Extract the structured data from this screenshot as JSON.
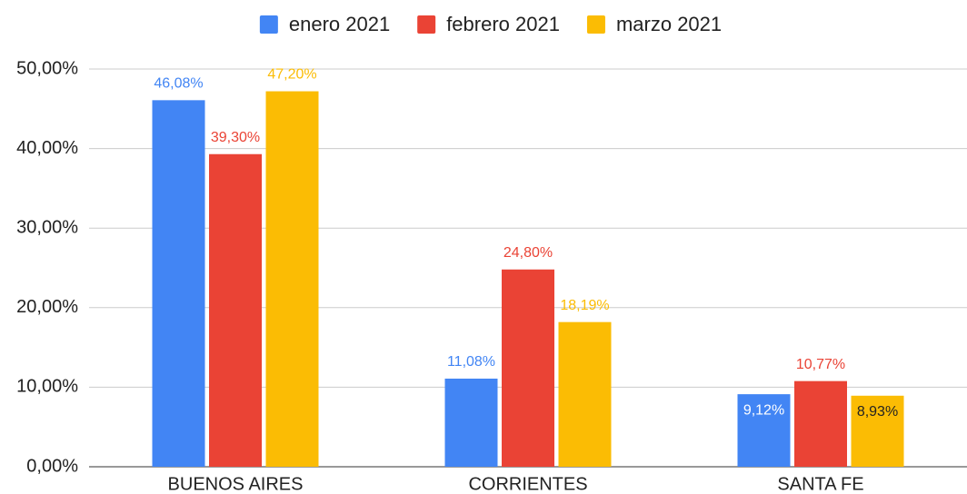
{
  "chart_data": {
    "type": "bar",
    "categories": [
      "BUENOS AIRES",
      "CORRIENTES",
      "SANTA FE"
    ],
    "series": [
      {
        "name": "enero 2021",
        "color": "#4285f4",
        "values": [
          46.08,
          11.08,
          9.12
        ],
        "value_labels": [
          "46,08%",
          "11,08%",
          "9,12%"
        ]
      },
      {
        "name": "febrero 2021",
        "color": "#ea4335",
        "values": [
          39.3,
          24.8,
          10.77
        ],
        "value_labels": [
          "39,30%",
          "24,80%",
          "10,77%"
        ]
      },
      {
        "name": "marzo 2021",
        "color": "#fbbc04",
        "values": [
          47.2,
          18.19,
          8.93
        ],
        "value_labels": [
          "47,20%",
          "18,19%",
          "8,93%"
        ]
      }
    ],
    "ylim": [
      0,
      50
    ],
    "yticks": [
      {
        "value": 0,
        "label": "0,00%"
      },
      {
        "value": 10,
        "label": "10,00%"
      },
      {
        "value": 20,
        "label": "20,00%"
      },
      {
        "value": 30,
        "label": "30,00%"
      },
      {
        "value": 40,
        "label": "40,00%"
      },
      {
        "value": 50,
        "label": "50,00%"
      }
    ],
    "grid": true,
    "legend": "top"
  }
}
